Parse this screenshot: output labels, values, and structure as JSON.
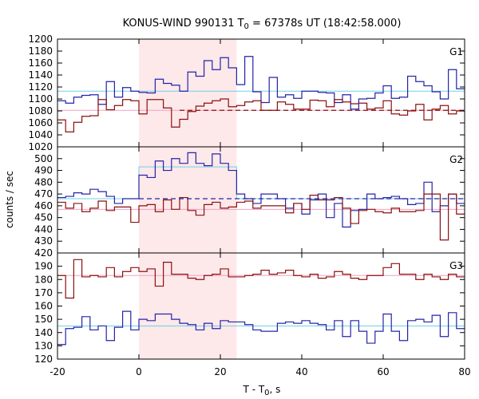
{
  "title_main": "KONUS-WIND 990131 T",
  "title_sub": "0",
  "title_rest": " = 67378s UT (18:42:58.000)",
  "colors": {
    "blue": "#2424a8",
    "red": "#8c1010",
    "cyan": "#70d0e6",
    "pink": "#f0a0c0",
    "shade": "#fde8ea"
  },
  "chart_data": {
    "type": "line",
    "xlabel_main": "T - T",
    "xlabel_sub": "0",
    "xlabel_rest": ", s",
    "ylabel": "counts / sec",
    "xlim": [
      -20,
      80
    ],
    "x_ticks": [
      -20,
      0,
      20,
      40,
      60,
      80
    ],
    "highlight_interval": [
      0,
      24
    ],
    "bin_edges": [
      -20,
      -18,
      -16,
      -14,
      -12,
      -10,
      -8,
      -6,
      -4,
      -2,
      0,
      2,
      4,
      6,
      8,
      10,
      12,
      14,
      16,
      18,
      20,
      22,
      24,
      26,
      28,
      30,
      32,
      34,
      36,
      38,
      40,
      42,
      44,
      46,
      48,
      50,
      52,
      54,
      56,
      58,
      60,
      62,
      64,
      66,
      68,
      70,
      72,
      74,
      76,
      78,
      80
    ],
    "panels": [
      {
        "label": "G1",
        "ylim": [
          1020,
          1200
        ],
        "y_ticks": [
          1020,
          1040,
          1060,
          1080,
          1100,
          1120,
          1140,
          1160,
          1180,
          1200
        ],
        "series": [
          {
            "color": "blue",
            "values": [
              1097,
              1093,
              1103,
              1106,
              1107,
              1091,
              1129,
              1103,
              1119,
              1113,
              1111,
              1110,
              1133,
              1126,
              1123,
              1113,
              1145,
              1138,
              1164,
              1149,
              1169,
              1152,
              1124,
              1171,
              1112,
              1094,
              1136,
              1103,
              1107,
              1101,
              1113,
              1113,
              1111,
              1110,
              1094,
              1107,
              1083,
              1100,
              1101,
              1110,
              1122,
              1101,
              1103,
              1138,
              1129,
              1122,
              1112,
              1100,
              1149,
              1117
            ],
            "baseline": {
              "value": 1113,
              "color": "cyan",
              "dashed": false,
              "from": -20,
              "to": 80
            }
          },
          {
            "color": "red",
            "values": [
              1065,
              1045,
              1061,
              1071,
              1072,
              1099,
              1082,
              1089,
              1099,
              1097,
              1075,
              1099,
              1099,
              1085,
              1053,
              1066,
              1079,
              1088,
              1093,
              1097,
              1100,
              1087,
              1089,
              1095,
              1097,
              1081,
              1081,
              1095,
              1091,
              1083,
              1083,
              1098,
              1097,
              1087,
              1099,
              1095,
              1092,
              1093,
              1083,
              1085,
              1097,
              1075,
              1073,
              1080,
              1091,
              1065,
              1083,
              1089,
              1075,
              1080
            ],
            "baseline": {
              "value": 1081,
              "color": "pink",
              "dashed": false,
              "from": -20,
              "to": 80,
              "dashed_segment": {
                "value": 1081,
                "from": 10,
                "to": 80
              }
            }
          }
        ]
      },
      {
        "label": "G2",
        "ylim": [
          420,
          510
        ],
        "y_ticks": [
          420,
          430,
          440,
          450,
          460,
          470,
          480,
          490,
          500
        ],
        "series": [
          {
            "color": "blue",
            "values": [
              467,
              468,
              471,
              470,
              474,
              472,
              468,
              462,
              466,
              466,
              486,
              484,
              498,
              490,
              500,
              496,
              505,
              496,
              494,
              504,
              496,
              490,
              470,
              466,
              462,
              470,
              470,
              466,
              458,
              462,
              453,
              465,
              470,
              450,
              462,
              442,
              456,
              457,
              470,
              466,
              467,
              468,
              466,
              461,
              462,
              480,
              455,
              460,
              470,
              462
            ],
            "baseline": {
              "value": 493,
              "color": "cyan",
              "dashed": false,
              "from": 0,
              "to": 24,
              "outside_value": 466,
              "dashed_segment": {
                "value": 466,
                "from": 0,
                "to": 80
              }
            }
          },
          {
            "color": "red",
            "values": [
              463,
              458,
              462,
              455,
              458,
              464,
              456,
              459,
              459,
              446,
              460,
              461,
              455,
              465,
              457,
              467,
              456,
              452,
              461,
              463,
              458,
              459,
              463,
              464,
              458,
              460,
              460,
              460,
              454,
              462,
              457,
              469,
              465,
              465,
              467,
              458,
              445,
              456,
              457,
              455,
              454,
              458,
              455,
              455,
              456,
              470,
              470,
              431,
              470,
              453
            ],
            "baseline": {
              "value": 457,
              "color": "pink",
              "dashed": false,
              "from": -20,
              "to": 80
            }
          }
        ]
      },
      {
        "label": "G3",
        "ylim": [
          120,
          200
        ],
        "y_ticks": [
          120,
          130,
          140,
          150,
          160,
          170,
          180,
          190
        ],
        "series": [
          {
            "color": "red",
            "values": [
              183,
              166,
              195,
              182,
              183,
              182,
              189,
              182,
              186,
              189,
              186,
              188,
              175,
              193,
              184,
              184,
              181,
              180,
              183,
              184,
              188,
              182,
              182,
              183,
              184,
              187,
              184,
              185,
              187,
              183,
              182,
              184,
              181,
              182,
              186,
              184,
              181,
              180,
              183,
              183,
              189,
              192,
              184,
              184,
              180,
              184,
              182,
              180,
              184,
              182
            ],
            "baseline": {
              "value": 183,
              "color": "pink",
              "dashed": false,
              "from": -20,
              "to": 80
            }
          },
          {
            "color": "blue",
            "values": [
              131,
              143,
              144,
              152,
              142,
              145,
              134,
              144,
              156,
              142,
              150,
              149,
              154,
              154,
              150,
              147,
              146,
              142,
              147,
              143,
              149,
              148,
              148,
              146,
              142,
              141,
              141,
              147,
              148,
              147,
              149,
              147,
              146,
              142,
              149,
              137,
              149,
              141,
              132,
              141,
              154,
              141,
              134,
              149,
              150,
              148,
              153,
              137,
              155,
              143
            ],
            "baseline": {
              "value": 145,
              "color": "cyan",
              "dashed": false,
              "from": -20,
              "to": 80
            }
          }
        ]
      }
    ]
  }
}
